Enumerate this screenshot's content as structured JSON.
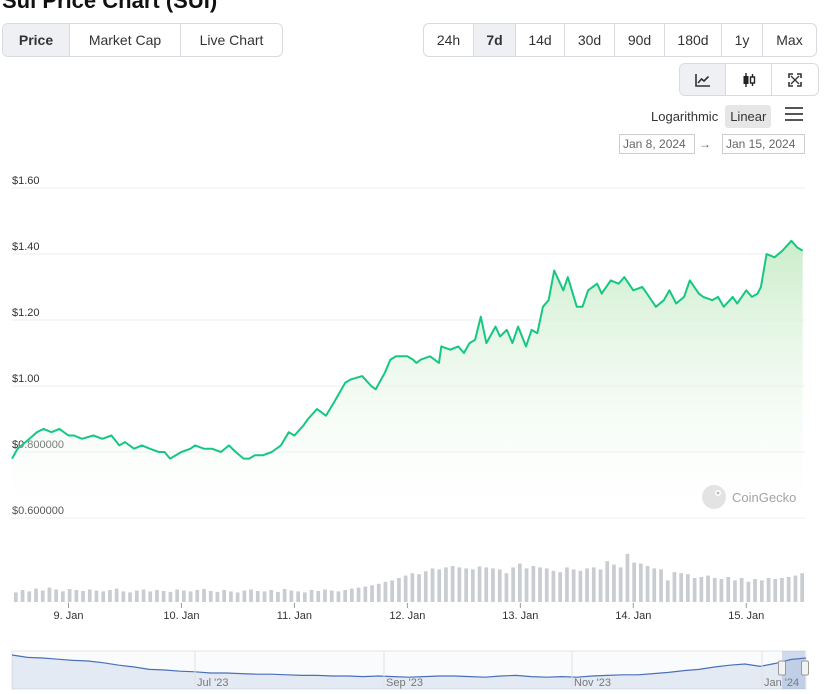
{
  "page": {
    "title": "Sui Price Chart (SUI)"
  },
  "tabs": [
    {
      "label": "Price",
      "active": true
    },
    {
      "label": "Market Cap",
      "active": false
    },
    {
      "label": "Live Chart",
      "active": false
    }
  ],
  "ranges": [
    {
      "label": "24h",
      "active": false
    },
    {
      "label": "7d",
      "active": true
    },
    {
      "label": "14d",
      "active": false
    },
    {
      "label": "30d",
      "active": false
    },
    {
      "label": "90d",
      "active": false
    },
    {
      "label": "180d",
      "active": false
    },
    {
      "label": "1y",
      "active": false
    },
    {
      "label": "Max",
      "active": false
    }
  ],
  "views": [
    {
      "icon": "line-chart-icon",
      "active": true
    },
    {
      "icon": "candlestick-icon",
      "active": false
    },
    {
      "icon": "fullscreen-icon",
      "active": false
    }
  ],
  "scale": {
    "log_label": "Logarithmic",
    "linear_label": "Linear",
    "active": "linear"
  },
  "date_range": {
    "from": "Jan 8, 2024",
    "arrow": "→",
    "to": "Jan 15, 2024"
  },
  "watermark": "CoinGecko",
  "colors": {
    "line": "#16c784",
    "area_top": "#c8ecc8",
    "volume": "#c9ccd1",
    "navigator": "#4a70b8"
  },
  "chart_data": {
    "type": "line",
    "y_ticks": [
      {
        "value": 1.6,
        "label": "$1.60"
      },
      {
        "value": 1.4,
        "label": "$1.40"
      },
      {
        "value": 1.2,
        "label": "$1.20"
      },
      {
        "value": 1.0,
        "label": "$1.00"
      },
      {
        "value": 0.8,
        "label": "$0.800000"
      },
      {
        "value": 0.6,
        "label": "$0.600000"
      }
    ],
    "ylim": [
      0.6,
      1.6
    ],
    "x_range": [
      8.5,
      15.52
    ],
    "x_ticks": [
      {
        "value": 9,
        "label": "9. Jan"
      },
      {
        "value": 10,
        "label": "10. Jan"
      },
      {
        "value": 11,
        "label": "11. Jan"
      },
      {
        "value": 12,
        "label": "12. Jan"
      },
      {
        "value": 13,
        "label": "13. Jan"
      },
      {
        "value": 14,
        "label": "14. Jan"
      },
      {
        "value": 15,
        "label": "15. Jan"
      }
    ],
    "series": [
      {
        "x": [
          8.5,
          8.55,
          8.62,
          8.72,
          8.78,
          8.85,
          8.92,
          9.0,
          9.05,
          9.12,
          9.22,
          9.3,
          9.38,
          9.45,
          9.5,
          9.58,
          9.65,
          9.72,
          9.8,
          9.85,
          9.9,
          10.0,
          10.08,
          10.12,
          10.2,
          10.27,
          10.35,
          10.42,
          10.48,
          10.55,
          10.6,
          10.65,
          10.72,
          10.8,
          10.88,
          10.95,
          11.0,
          11.08,
          11.12,
          11.2,
          11.28,
          11.35,
          11.4,
          11.45,
          11.5,
          11.6,
          11.68,
          11.72,
          11.8,
          11.85,
          11.9,
          11.95,
          12.0,
          12.05,
          12.08,
          12.12,
          12.2,
          12.28,
          12.3,
          12.38,
          12.45,
          12.5,
          12.55,
          12.6,
          12.65,
          12.7,
          12.78,
          12.82,
          12.88,
          12.93,
          12.98,
          13.05,
          13.1,
          13.15,
          13.2,
          13.25,
          13.3,
          13.38,
          13.42,
          13.5,
          13.55,
          13.6,
          13.68,
          13.72,
          13.8,
          13.87,
          13.92,
          14.0,
          14.08,
          14.12,
          14.2,
          14.27,
          14.32,
          14.38,
          14.45,
          14.5,
          14.58,
          14.62,
          14.7,
          14.75,
          14.8,
          14.88,
          14.92,
          15.0,
          15.05,
          15.1,
          15.13,
          15.18,
          15.25,
          15.32,
          15.4,
          15.45,
          15.5
        ],
        "y": [
          0.78,
          0.81,
          0.83,
          0.86,
          0.87,
          0.86,
          0.87,
          0.85,
          0.85,
          0.84,
          0.85,
          0.84,
          0.85,
          0.82,
          0.83,
          0.81,
          0.82,
          0.81,
          0.8,
          0.8,
          0.78,
          0.8,
          0.81,
          0.82,
          0.81,
          0.81,
          0.8,
          0.82,
          0.8,
          0.78,
          0.78,
          0.79,
          0.79,
          0.8,
          0.82,
          0.86,
          0.85,
          0.88,
          0.9,
          0.93,
          0.91,
          0.95,
          0.98,
          1.01,
          1.02,
          1.03,
          1.0,
          0.99,
          1.04,
          1.08,
          1.09,
          1.09,
          1.09,
          1.08,
          1.07,
          1.08,
          1.09,
          1.07,
          1.12,
          1.11,
          1.12,
          1.1,
          1.13,
          1.14,
          1.21,
          1.13,
          1.18,
          1.15,
          1.17,
          1.13,
          1.18,
          1.12,
          1.17,
          1.16,
          1.24,
          1.26,
          1.35,
          1.29,
          1.33,
          1.24,
          1.24,
          1.29,
          1.31,
          1.28,
          1.32,
          1.31,
          1.33,
          1.29,
          1.3,
          1.28,
          1.24,
          1.26,
          1.29,
          1.25,
          1.27,
          1.32,
          1.28,
          1.27,
          1.26,
          1.27,
          1.24,
          1.27,
          1.25,
          1.29,
          1.27,
          1.28,
          1.3,
          1.4,
          1.39,
          1.41,
          1.44,
          1.42,
          1.41
        ]
      }
    ],
    "volume": {
      "x_range": [
        8.5,
        15.52
      ],
      "values": [
        0.2,
        0.25,
        0.22,
        0.28,
        0.24,
        0.3,
        0.26,
        0.22,
        0.27,
        0.25,
        0.23,
        0.26,
        0.24,
        0.22,
        0.25,
        0.28,
        0.22,
        0.2,
        0.24,
        0.26,
        0.22,
        0.25,
        0.23,
        0.21,
        0.26,
        0.24,
        0.22,
        0.25,
        0.27,
        0.23,
        0.21,
        0.25,
        0.22,
        0.2,
        0.24,
        0.26,
        0.23,
        0.22,
        0.25,
        0.21,
        0.27,
        0.24,
        0.22,
        0.2,
        0.25,
        0.23,
        0.26,
        0.24,
        0.22,
        0.25,
        0.28,
        0.3,
        0.32,
        0.35,
        0.38,
        0.42,
        0.45,
        0.5,
        0.55,
        0.6,
        0.58,
        0.64,
        0.7,
        0.68,
        0.72,
        0.75,
        0.72,
        0.7,
        0.68,
        0.74,
        0.72,
        0.7,
        0.68,
        0.6,
        0.72,
        0.8,
        0.7,
        0.75,
        0.72,
        0.7,
        0.65,
        0.62,
        0.72,
        0.68,
        0.65,
        0.7,
        0.72,
        0.68,
        0.85,
        0.78,
        0.72,
        1.0,
        0.82,
        0.8,
        0.75,
        0.7,
        0.68,
        0.45,
        0.62,
        0.6,
        0.58,
        0.5,
        0.52,
        0.55,
        0.5,
        0.48,
        0.52,
        0.45,
        0.5,
        0.42,
        0.48,
        0.45,
        0.5,
        0.48,
        0.5,
        0.52,
        0.55,
        0.6
      ]
    },
    "navigator": {
      "labels": [
        "Jul '23",
        "Sep '23",
        "Nov '23",
        "Jan '24"
      ],
      "values": [
        1.0,
        0.92,
        0.9,
        0.86,
        0.82,
        0.8,
        0.74,
        0.66,
        0.6,
        0.52,
        0.5,
        0.46,
        0.44,
        0.4,
        0.4,
        0.38,
        0.36,
        0.36,
        0.34,
        0.32,
        0.32,
        0.3,
        0.3,
        0.28,
        0.3,
        0.28,
        0.26,
        0.28,
        0.3,
        0.3,
        0.28,
        0.26,
        0.3,
        0.32,
        0.28,
        0.26,
        0.28,
        0.26,
        0.3,
        0.32,
        0.34,
        0.34,
        0.38,
        0.42,
        0.48,
        0.52,
        0.6,
        0.66,
        0.7,
        0.62,
        0.72,
        0.85,
        0.9
      ]
    }
  }
}
